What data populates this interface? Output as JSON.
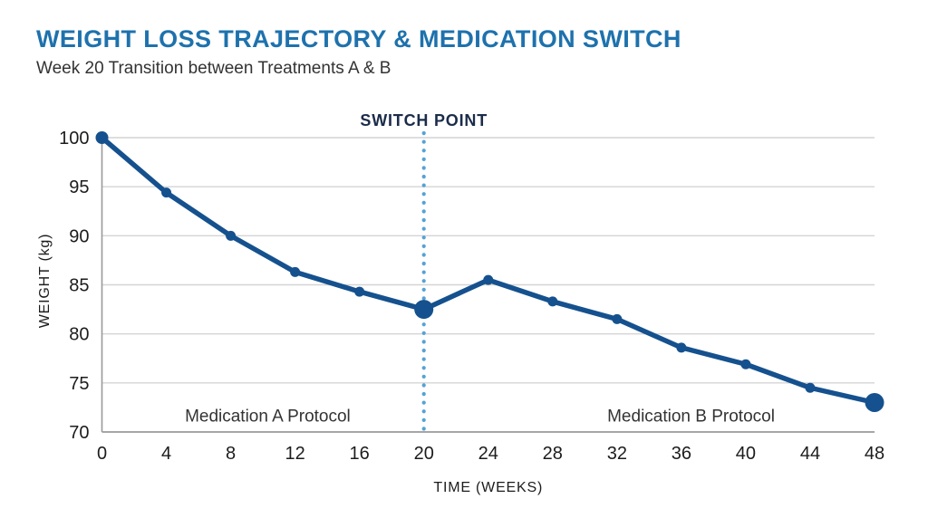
{
  "header": {
    "title": "WEIGHT LOSS TRAJECTORY & MEDICATION SWITCH",
    "subtitle": "Week 20 Transition between Treatments A & B"
  },
  "colors": {
    "title": "#1e72ad",
    "subtitle": "#333333",
    "tick_text": "#1c1c1c",
    "line": "#15518e",
    "point": "#15518e",
    "switch_line": "#55a2d6",
    "switch_label": "#1b2c4a",
    "grid": "#d4d4d4",
    "axis": "#9a9a9a"
  },
  "chart_data": {
    "type": "line",
    "title": "WEIGHT LOSS TRAJECTORY & MEDICATION SWITCH",
    "subtitle": "Week 20 Transition between Treatments A & B",
    "xlabel": "TIME (WEEKS)",
    "ylabel": "WEIGHT (kg)",
    "x": [
      0,
      4,
      8,
      12,
      16,
      20,
      24,
      28,
      32,
      36,
      40,
      44,
      48
    ],
    "series": [
      {
        "name": "Weight",
        "values": [
          100,
          94.4,
          90.0,
          86.3,
          84.3,
          82.5,
          85.5,
          83.3,
          81.5,
          78.6,
          76.9,
          74.5,
          73.0
        ]
      }
    ],
    "xticks": [
      0,
      4,
      8,
      12,
      16,
      20,
      24,
      28,
      32,
      36,
      40,
      44,
      48
    ],
    "yticks": [
      70,
      75,
      80,
      85,
      90,
      95,
      100
    ],
    "xlim": [
      0,
      48
    ],
    "ylim": [
      70,
      100
    ],
    "grid": "horizontal-only",
    "legend": "none",
    "emphasized_x": [
      20,
      48
    ],
    "annotations": {
      "switch": {
        "label": "SWITCH POINT",
        "x": 20
      },
      "region_a": {
        "label": "Medication A Protocol",
        "x": 10.3,
        "y": 71.6
      },
      "region_b": {
        "label": "Medication B Protocol",
        "x": 36.6,
        "y": 71.6
      }
    }
  }
}
